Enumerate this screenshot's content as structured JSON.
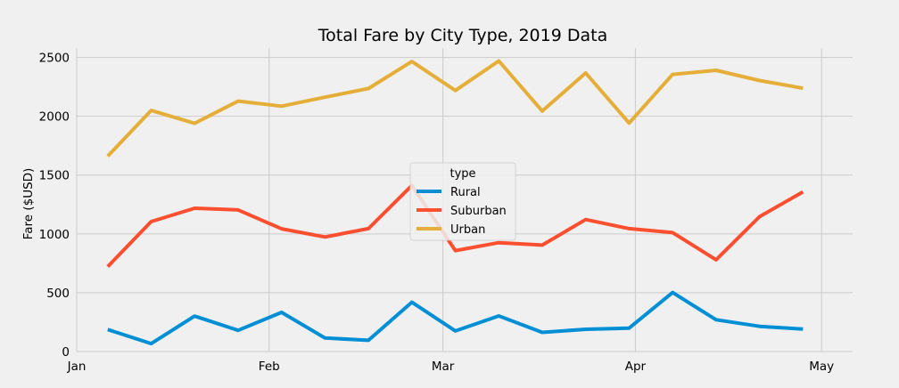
{
  "chart_data": {
    "type": "line",
    "title": "Total Fare by City Type, 2019 Data",
    "xlabel": "",
    "ylabel": "Fare ($USD)",
    "x_axis": {
      "type": "date",
      "range": [
        "2019-01-01",
        "2019-05-06"
      ],
      "ticks": [
        {
          "date": "2019-01-01",
          "label": "Jan"
        },
        {
          "date": "2019-02-01",
          "label": "Feb"
        },
        {
          "date": "2019-03-01",
          "label": "Mar"
        },
        {
          "date": "2019-04-01",
          "label": "Apr"
        },
        {
          "date": "2019-05-01",
          "label": "May"
        }
      ]
    },
    "y_axis": {
      "range": [
        0,
        2580
      ],
      "ticks": [
        0,
        500,
        1000,
        1500,
        2000,
        2500
      ]
    },
    "grid": true,
    "legend": {
      "title": "type",
      "placement": "center"
    },
    "x": [
      "2019-01-06",
      "2019-01-13",
      "2019-01-20",
      "2019-01-27",
      "2019-02-03",
      "2019-02-10",
      "2019-02-17",
      "2019-02-24",
      "2019-03-03",
      "2019-03-10",
      "2019-03-17",
      "2019-03-24",
      "2019-03-31",
      "2019-04-07",
      "2019-04-14",
      "2019-04-21",
      "2019-04-28"
    ],
    "series": [
      {
        "name": "Rural",
        "color": "#008fd5",
        "values": [
          187,
          67,
          301,
          180,
          333,
          115,
          95,
          419,
          175,
          303,
          163,
          189,
          199,
          502,
          270,
          214,
          191
        ]
      },
      {
        "name": "Suburban",
        "color": "#fc4f30",
        "values": [
          722,
          1105,
          1218,
          1204,
          1043,
          974,
          1045,
          1412,
          858,
          925,
          905,
          1122,
          1045,
          1011,
          780,
          1146,
          1357
        ]
      },
      {
        "name": "Urban",
        "color": "#e5ae38",
        "values": [
          1661,
          2050,
          1940,
          2129,
          2086,
          2162,
          2236,
          2466,
          2219,
          2470,
          2044,
          2368,
          1942,
          2356,
          2391,
          2304,
          2239
        ]
      }
    ]
  }
}
